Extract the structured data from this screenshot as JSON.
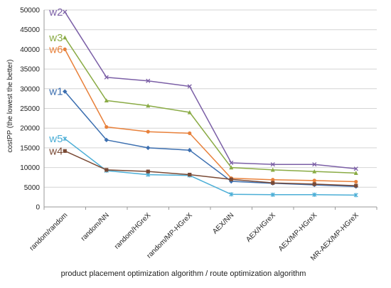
{
  "chart_data": {
    "type": "line",
    "title": "",
    "xlabel": "product placement optimization algorithm / route optimization algorithm",
    "ylabel": "costPP  (the lowest the better)",
    "ylim": [
      0,
      50000
    ],
    "yticks": [
      0,
      5000,
      10000,
      15000,
      20000,
      25000,
      30000,
      35000,
      40000,
      45000,
      50000
    ],
    "grid": true,
    "categories": [
      "random/random",
      "random/NN",
      "random/HGreX",
      "random/MP-HGreX",
      "AEX/NN",
      "AEX/HGreX",
      "AEX/MP-HGreX",
      "MR-AEX/MP-HGreX"
    ],
    "series": [
      {
        "name": "w2",
        "color": "#7b5fa6",
        "marker": "x",
        "values": [
          49500,
          32900,
          32000,
          30600,
          11200,
          10800,
          10800,
          9700
        ]
      },
      {
        "name": "w3",
        "color": "#8aab45",
        "marker": "triangle",
        "values": [
          43000,
          27000,
          25700,
          24000,
          10000,
          9400,
          9000,
          8600
        ]
      },
      {
        "name": "w6",
        "color": "#e8803a",
        "marker": "circle",
        "values": [
          40000,
          20300,
          19100,
          18700,
          7300,
          6900,
          6700,
          6400
        ]
      },
      {
        "name": "w1",
        "color": "#3c6fb0",
        "marker": "diamond",
        "values": [
          29300,
          17000,
          15000,
          14400,
          6500,
          6000,
          5600,
          5200
        ]
      },
      {
        "name": "w5",
        "color": "#4baed6",
        "marker": "star",
        "values": [
          17300,
          9200,
          8200,
          8000,
          3200,
          3100,
          3100,
          3000
        ]
      },
      {
        "name": "w4",
        "color": "#7a4a35",
        "marker": "square",
        "values": [
          14200,
          9400,
          9000,
          8200,
          7000,
          6100,
          5800,
          5400
        ]
      }
    ]
  }
}
